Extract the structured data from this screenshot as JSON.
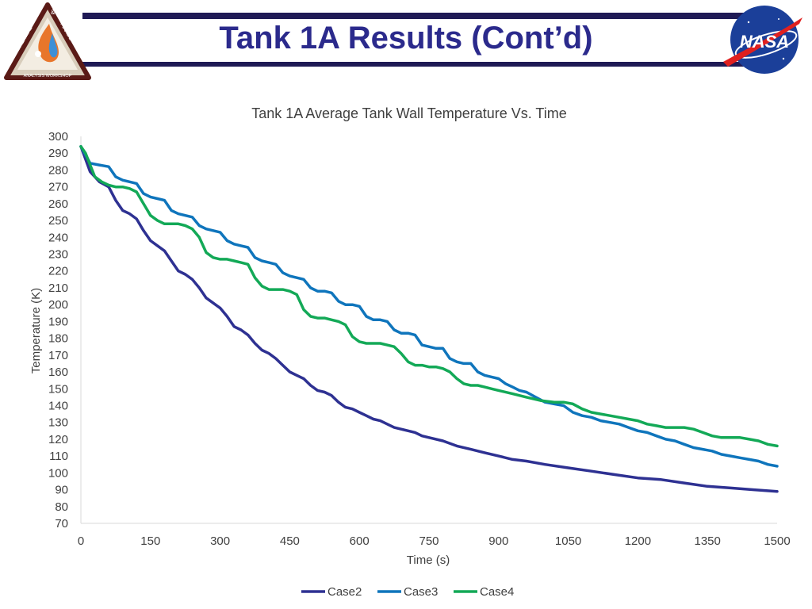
{
  "slide": {
    "title": "Tank 1A Results (Cont’d)"
  },
  "logos": {
    "left_name": "Thermal & Fluids Analysis Workshop",
    "left_texts": [
      "&",
      "THERMAL",
      "FLUIDS",
      "ANALYSIS WORKSHOP"
    ],
    "right_text": "NASA"
  },
  "colors": {
    "header_band": "#1f1a55",
    "title": "#2b2a8c",
    "case2": "#2e3192",
    "case3": "#0f75bc",
    "case4": "#13a957"
  },
  "chart_data": {
    "type": "line",
    "title": "Tank 1A Average Tank Wall Temperature Vs. Time",
    "xlabel": "Time (s)",
    "ylabel": "Temperature (K)",
    "xlim": [
      0,
      1500
    ],
    "ylim": [
      70,
      300
    ],
    "xticks": [
      0,
      150,
      300,
      450,
      600,
      750,
      900,
      1050,
      1200,
      1350,
      1500
    ],
    "yticks": [
      70,
      80,
      90,
      100,
      110,
      120,
      130,
      140,
      150,
      160,
      170,
      180,
      190,
      200,
      210,
      220,
      230,
      240,
      250,
      260,
      270,
      280,
      290,
      300
    ],
    "grid": false,
    "legend_position": "bottom",
    "series": [
      {
        "name": "Case2",
        "x": [
          0,
          20,
          40,
          60,
          75,
          90,
          105,
          120,
          135,
          150,
          165,
          180,
          195,
          210,
          225,
          240,
          255,
          270,
          285,
          300,
          315,
          330,
          345,
          360,
          375,
          390,
          405,
          420,
          435,
          450,
          465,
          480,
          495,
          510,
          525,
          540,
          555,
          570,
          585,
          600,
          615,
          630,
          645,
          660,
          675,
          690,
          705,
          720,
          735,
          750,
          780,
          810,
          840,
          870,
          900,
          930,
          960,
          1000,
          1050,
          1100,
          1150,
          1200,
          1250,
          1300,
          1350,
          1400,
          1450,
          1500
        ],
        "values": [
          294,
          279,
          273,
          270,
          262,
          256,
          254,
          251,
          244,
          238,
          235,
          232,
          226,
          220,
          218,
          215,
          210,
          204,
          201,
          198,
          193,
          187,
          185,
          182,
          177,
          173,
          171,
          168,
          164,
          160,
          158,
          156,
          152,
          149,
          148,
          146,
          142,
          139,
          138,
          136,
          134,
          132,
          131,
          129,
          127,
          126,
          125,
          124,
          122,
          121,
          119,
          116,
          114,
          112,
          110,
          108,
          107,
          105,
          103,
          101,
          99,
          97,
          96,
          94,
          92,
          91,
          90,
          89
        ]
      },
      {
        "name": "Case3",
        "x": [
          0,
          20,
          40,
          60,
          75,
          90,
          105,
          120,
          135,
          150,
          165,
          180,
          195,
          210,
          225,
          240,
          255,
          270,
          285,
          300,
          315,
          330,
          345,
          360,
          375,
          390,
          405,
          420,
          435,
          450,
          465,
          480,
          495,
          510,
          525,
          540,
          555,
          570,
          585,
          600,
          615,
          630,
          645,
          660,
          675,
          690,
          705,
          720,
          735,
          750,
          765,
          780,
          795,
          810,
          825,
          840,
          855,
          870,
          885,
          900,
          915,
          930,
          945,
          960,
          980,
          1000,
          1020,
          1040,
          1060,
          1080,
          1100,
          1120,
          1140,
          1160,
          1180,
          1200,
          1220,
          1240,
          1260,
          1280,
          1300,
          1320,
          1340,
          1360,
          1380,
          1400,
          1420,
          1440,
          1460,
          1480,
          1500
        ],
        "values": [
          294,
          284,
          283,
          282,
          276,
          274,
          273,
          272,
          266,
          264,
          263,
          262,
          256,
          254,
          253,
          252,
          247,
          245,
          244,
          243,
          238,
          236,
          235,
          234,
          228,
          226,
          225,
          224,
          219,
          217,
          216,
          215,
          210,
          208,
          208,
          207,
          202,
          200,
          200,
          199,
          193,
          191,
          191,
          190,
          185,
          183,
          183,
          182,
          176,
          175,
          174,
          174,
          168,
          166,
          165,
          165,
          160,
          158,
          157,
          156,
          153,
          151,
          149,
          148,
          145,
          142,
          141,
          140,
          136,
          134,
          133,
          131,
          130,
          129,
          127,
          125,
          124,
          122,
          120,
          119,
          117,
          115,
          114,
          113,
          111,
          110,
          109,
          108,
          107,
          105,
          104
        ]
      },
      {
        "name": "Case4",
        "x": [
          0,
          10,
          20,
          30,
          45,
          60,
          75,
          90,
          105,
          120,
          135,
          150,
          165,
          180,
          195,
          210,
          225,
          240,
          255,
          270,
          285,
          300,
          315,
          330,
          345,
          360,
          375,
          390,
          405,
          420,
          435,
          450,
          465,
          480,
          495,
          510,
          525,
          540,
          555,
          570,
          585,
          600,
          615,
          630,
          645,
          660,
          675,
          690,
          705,
          720,
          735,
          750,
          765,
          780,
          795,
          810,
          825,
          840,
          855,
          870,
          885,
          900,
          930,
          960,
          990,
          1020,
          1040,
          1060,
          1080,
          1100,
          1120,
          1140,
          1160,
          1180,
          1200,
          1220,
          1240,
          1260,
          1280,
          1300,
          1320,
          1340,
          1360,
          1380,
          1400,
          1420,
          1440,
          1460,
          1480,
          1500
        ],
        "values": [
          294,
          290,
          283,
          276,
          273,
          271,
          270,
          270,
          269,
          267,
          260,
          253,
          250,
          248,
          248,
          248,
          247,
          245,
          240,
          231,
          228,
          227,
          227,
          226,
          225,
          224,
          216,
          211,
          209,
          209,
          209,
          208,
          206,
          197,
          193,
          192,
          192,
          191,
          190,
          188,
          181,
          178,
          177,
          177,
          177,
          176,
          175,
          171,
          166,
          164,
          164,
          163,
          163,
          162,
          160,
          156,
          153,
          152,
          152,
          151,
          150,
          149,
          147,
          145,
          143,
          142,
          142,
          141,
          138,
          136,
          135,
          134,
          133,
          132,
          131,
          129,
          128,
          127,
          127,
          127,
          126,
          124,
          122,
          121,
          121,
          121,
          120,
          119,
          117,
          116
        ]
      }
    ]
  }
}
